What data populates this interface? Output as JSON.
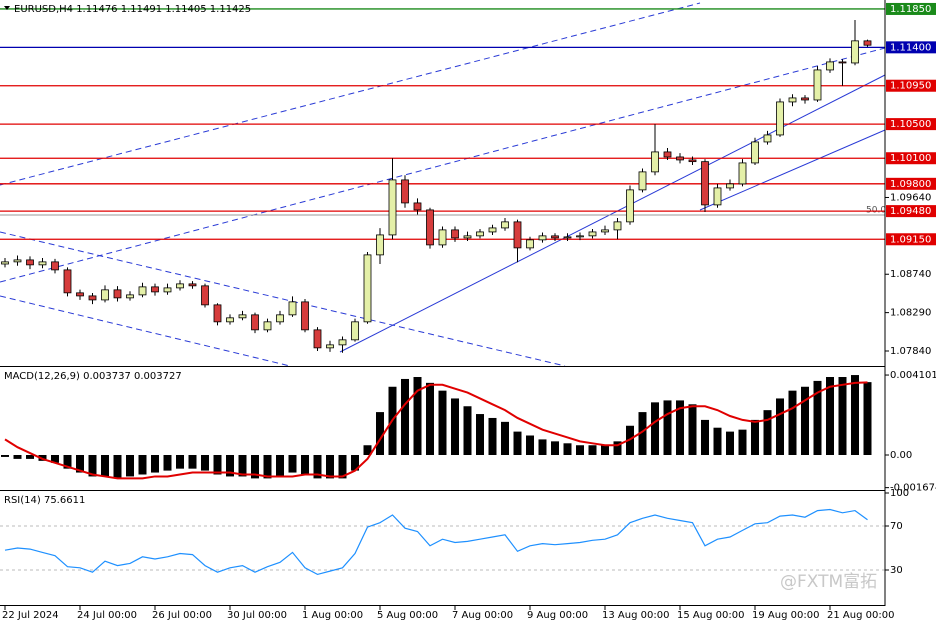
{
  "watermark": "@FXTM富拓",
  "chart_data": [
    {
      "type": "candlestick",
      "title": "EURUSD,H4  1.11476 1.11491 1.11405 1.11425",
      "categories": [
        "22 Jul 2024",
        null,
        null,
        null,
        null,
        null,
        "24 Jul 00:00",
        null,
        null,
        null,
        null,
        null,
        "26 Jul 00:00",
        null,
        null,
        null,
        null,
        null,
        "30 Jul 00:00",
        null,
        null,
        null,
        null,
        null,
        "1 Aug 00:00",
        null,
        null,
        null,
        null,
        null,
        "5 Aug 00:00",
        null,
        null,
        null,
        null,
        null,
        "7 Aug 00:00",
        null,
        null,
        null,
        null,
        null,
        "9 Aug 00:00",
        null,
        null,
        null,
        null,
        null,
        "13 Aug 00:00",
        null,
        null,
        null,
        null,
        null,
        "15 Aug 00:00",
        null,
        null,
        null,
        null,
        null,
        "19 Aug 00:00",
        null,
        null,
        null,
        null,
        null,
        "21 Aug 00:00",
        null,
        null,
        null
      ],
      "open": [
        1.0886,
        1.08885,
        1.08908,
        1.0885,
        1.08885,
        1.08791,
        1.08522,
        1.08486,
        1.08439,
        1.08557,
        1.08463,
        1.08498,
        1.08592,
        1.08533,
        1.0858,
        1.08627,
        1.08604,
        1.08381,
        1.08182,
        1.08229,
        1.08264,
        1.08088,
        1.08182,
        1.08264,
        1.08416,
        1.08088,
        1.07877,
        1.07912,
        1.07971,
        1.08182,
        1.08967,
        1.09201,
        1.09846,
        1.09576,
        1.09494,
        1.09084,
        1.0926,
        1.09166,
        1.0919,
        1.09236,
        1.09283,
        1.09354,
        1.09049,
        1.09143,
        1.0919,
        1.09166,
        1.09178,
        1.0919,
        1.09236,
        1.0926,
        1.09354,
        1.09729,
        1.0994,
        1.10174,
        1.10115,
        1.1008,
        1.1006,
        1.09553,
        1.09752,
        1.09799,
        1.10045,
        1.10291,
        1.10373,
        1.1076,
        1.10807,
        1.10783,
        1.11135,
        1.11229,
        1.11217,
        1.11476
      ],
      "high": [
        1.0893,
        1.0896,
        1.0895,
        1.0893,
        1.0892,
        1.0882,
        1.0856,
        1.0852,
        1.0861,
        1.086,
        1.0854,
        1.0864,
        1.0863,
        1.0863,
        1.0867,
        1.0866,
        1.0863,
        1.084,
        1.0827,
        1.0831,
        1.0829,
        1.0822,
        1.0831,
        1.0848,
        1.0845,
        1.0812,
        1.0796,
        1.0801,
        1.0822,
        1.09,
        1.0928,
        1.101,
        1.099,
        1.0963,
        1.0952,
        1.093,
        1.093,
        1.0924,
        1.0927,
        1.0932,
        1.094,
        1.0938,
        1.0918,
        1.0923,
        1.0922,
        1.0922,
        1.0923,
        1.0927,
        1.0931,
        1.094,
        1.0978,
        1.0998,
        1.105,
        1.1022,
        1.1016,
        1.1012,
        1.1009,
        1.098,
        1.0985,
        1.1009,
        1.1034,
        1.1042,
        1.108,
        1.1085,
        1.1084,
        1.1118,
        1.1127,
        1.1126,
        1.1172,
        1.11491
      ],
      "low": [
        1.0882,
        1.0884,
        1.088,
        1.0881,
        1.0875,
        1.0848,
        1.0844,
        1.0839,
        1.0841,
        1.0842,
        1.0843,
        1.0847,
        1.0849,
        1.085,
        1.0855,
        1.0857,
        1.0835,
        1.0814,
        1.0815,
        1.082,
        1.0805,
        1.0806,
        1.0815,
        1.0824,
        1.0806,
        1.0784,
        1.0783,
        1.0782,
        1.0795,
        1.0816,
        1.0886,
        1.0915,
        1.0952,
        1.0944,
        1.0904,
        1.0905,
        1.0912,
        1.0913,
        1.0916,
        1.092,
        1.0925,
        1.0888,
        1.0902,
        1.0911,
        1.0913,
        1.0913,
        1.0914,
        1.0916,
        1.092,
        1.0915,
        1.0932,
        1.097,
        1.099,
        1.1008,
        1.1004,
        1.1002,
        1.0947,
        1.0952,
        1.0972,
        1.0977,
        1.1002,
        1.1026,
        1.1035,
        1.1071,
        1.1074,
        1.1076,
        1.111,
        1.1095,
        1.1119,
        1.11405
      ],
      "close": [
        1.08885,
        1.08908,
        1.0885,
        1.08885,
        1.08791,
        1.08522,
        1.08486,
        1.08439,
        1.08557,
        1.08463,
        1.08498,
        1.08592,
        1.08533,
        1.0858,
        1.08627,
        1.08604,
        1.08381,
        1.08182,
        1.08229,
        1.08264,
        1.08088,
        1.08182,
        1.08264,
        1.08416,
        1.08088,
        1.07877,
        1.07912,
        1.07971,
        1.08182,
        1.08967,
        1.09201,
        1.09846,
        1.09576,
        1.09494,
        1.09084,
        1.0926,
        1.09166,
        1.0919,
        1.09236,
        1.09283,
        1.09354,
        1.09049,
        1.09143,
        1.0919,
        1.09166,
        1.09178,
        1.0919,
        1.09236,
        1.0926,
        1.09354,
        1.09729,
        1.0994,
        1.10174,
        1.10115,
        1.1008,
        1.1006,
        1.09553,
        1.09752,
        1.09799,
        1.10045,
        1.10291,
        1.10373,
        1.1076,
        1.10807,
        1.10783,
        1.11135,
        1.11229,
        1.11217,
        1.11476,
        1.11425
      ],
      "up_color": "#e4f0a8",
      "down_color": "#d63c3c",
      "ylim": [
        1.07676,
        1.11955
      ],
      "yticks": [
        {
          "value": 1.0784,
          "label": "1.07840"
        },
        {
          "value": 1.0829,
          "label": "1.08290"
        },
        {
          "value": 1.0874,
          "label": "1.08740"
        },
        {
          "value": 1.0964,
          "label": "1.09640"
        }
      ],
      "levels": [
        {
          "value": 1.1185,
          "label": "1.11850",
          "color": "#1a8a1a"
        },
        {
          "value": 1.114,
          "label": "1.11400",
          "color": "#0000b0"
        },
        {
          "value": 1.1095,
          "label": "1.10950",
          "color": "#e00000"
        },
        {
          "value": 1.105,
          "label": "1.10500",
          "color": "#e00000"
        },
        {
          "value": 1.101,
          "label": "1.10100",
          "color": "#e00000"
        },
        {
          "value": 1.098,
          "label": "1.09800",
          "color": "#e00000"
        },
        {
          "value": 1.0948,
          "label": "1.09480",
          "color": "#e00000"
        },
        {
          "value": 1.0915,
          "label": "1.09150",
          "color": "#e00000"
        }
      ],
      "annotation": "50.0"
    },
    {
      "type": "macd",
      "title": "MACD(12,26,9) 0.003737 0.003727",
      "histogram": [
        -0.0001,
        -0.0002,
        -0.0002,
        -0.0003,
        -0.0004,
        -0.0007,
        -0.0009,
        -0.0011,
        -0.0011,
        -0.0012,
        -0.0011,
        -0.001,
        -0.0009,
        -0.0008,
        -0.0007,
        -0.0007,
        -0.0008,
        -0.001,
        -0.0011,
        -0.0011,
        -0.0012,
        -0.0012,
        -0.0011,
        -0.0009,
        -0.001,
        -0.0012,
        -0.0012,
        -0.0012,
        -0.0008,
        0.0005,
        0.0022,
        0.0035,
        0.0039,
        0.004,
        0.0037,
        0.0033,
        0.0029,
        0.0025,
        0.0021,
        0.0019,
        0.0017,
        0.0012,
        0.001,
        0.0008,
        0.0007,
        0.0006,
        0.0005,
        0.0005,
        0.0005,
        0.0007,
        0.0015,
        0.0022,
        0.0027,
        0.0028,
        0.0028,
        0.0026,
        0.0018,
        0.0014,
        0.0012,
        0.0013,
        0.0018,
        0.0023,
        0.0029,
        0.0033,
        0.0035,
        0.0038,
        0.004,
        0.004,
        0.0041,
        0.003737
      ],
      "signal": [
        0.0008,
        0.0004,
        0.0001,
        -0.0002,
        -0.0004,
        -0.0006,
        -0.0008,
        -0.001,
        -0.0011,
        -0.0012,
        -0.0012,
        -0.0012,
        -0.0011,
        -0.0011,
        -0.001,
        -0.0009,
        -0.0009,
        -0.0009,
        -0.0009,
        -0.001,
        -0.001,
        -0.0011,
        -0.0011,
        -0.0011,
        -0.001,
        -0.001,
        -0.0011,
        -0.0011,
        -0.0008,
        -0.0002,
        0.0008,
        0.0018,
        0.0026,
        0.0033,
        0.0036,
        0.0036,
        0.0034,
        0.0032,
        0.0029,
        0.0026,
        0.0023,
        0.0019,
        0.0016,
        0.0013,
        0.0011,
        0.0009,
        0.0007,
        0.0006,
        0.0005,
        0.0005,
        0.0008,
        0.0012,
        0.0017,
        0.0021,
        0.0024,
        0.0025,
        0.0025,
        0.0023,
        0.002,
        0.0018,
        0.0017,
        0.0018,
        0.0021,
        0.0024,
        0.0028,
        0.0032,
        0.0035,
        0.0036,
        0.0037,
        0.003727
      ],
      "color": "#000000",
      "signal_color": "#e00000",
      "ylim": [
        -0.001795,
        0.004462
      ],
      "yticks": [
        0.004101,
        {
          "value": 0,
          "label": "0.00"
        },
        -0.001674
      ]
    },
    {
      "type": "line",
      "title": "RSI(14) 75.6611",
      "values": [
        48,
        50,
        49,
        46,
        43,
        33,
        32,
        28,
        38,
        34,
        36,
        42,
        40,
        42,
        45,
        44,
        34,
        28,
        32,
        34,
        28,
        33,
        37,
        46,
        32,
        26,
        29,
        32,
        45,
        69,
        73,
        80,
        68,
        65,
        52,
        58,
        55,
        56,
        58,
        60,
        62,
        47,
        52,
        54,
        53,
        54,
        55,
        57,
        58,
        62,
        73,
        77,
        80,
        77,
        75,
        73,
        52,
        58,
        60,
        66,
        72,
        73,
        79,
        80,
        78,
        84,
        85,
        82,
        84,
        75.6611
      ],
      "color": "#1e90ff",
      "ylim": [
        -1.8,
        100.9
      ],
      "yticks": [
        100,
        70,
        30
      ],
      "levels": [
        70,
        30
      ]
    }
  ]
}
